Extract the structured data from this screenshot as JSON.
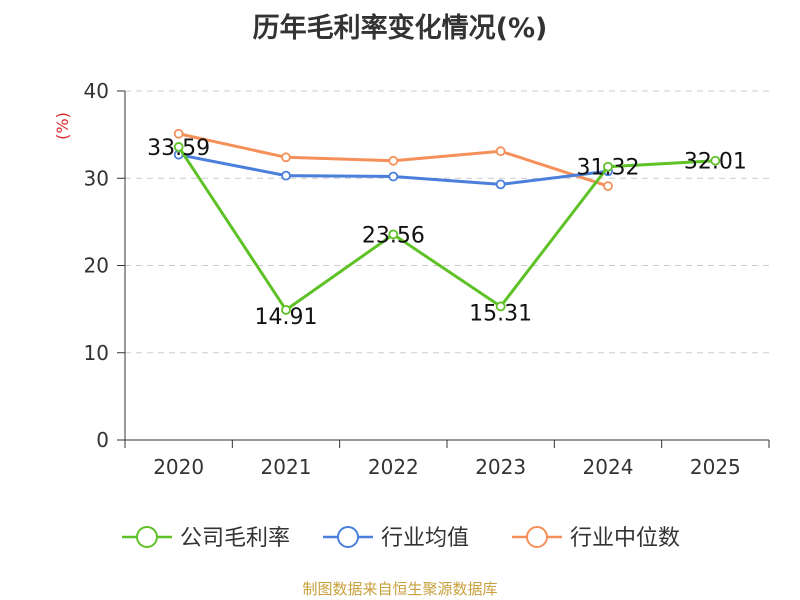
{
  "chart_data": {
    "type": "line",
    "title": "历年毛利率变化情况(%)",
    "ylabel": "(%)",
    "xlabel": "",
    "categories": [
      "2020",
      "2021",
      "2022",
      "2023",
      "2024",
      "2025"
    ],
    "ylim": [
      0,
      40
    ],
    "yticks": [
      0,
      10,
      20,
      30,
      40
    ],
    "grid": true,
    "legend_position": "bottom",
    "series": [
      {
        "name": "公司毛利率",
        "color": "#5ec227",
        "values": [
          33.59,
          14.91,
          23.56,
          15.31,
          31.32,
          32.01
        ],
        "labels": [
          "33.59",
          "14.91",
          "23.56",
          "15.31",
          "31.32",
          "32.01"
        ]
      },
      {
        "name": "行业均值",
        "color": "#4a7fdc",
        "values": [
          32.7,
          30.3,
          30.2,
          29.3,
          30.8,
          null
        ]
      },
      {
        "name": "行业中位数",
        "color": "#f5905a",
        "values": [
          35.1,
          32.4,
          32.0,
          33.1,
          29.1,
          null
        ]
      }
    ]
  },
  "footer": {
    "source": "制图数据来自恒生聚源数据库"
  },
  "colors": {
    "ylabel": "#d9262b",
    "axis": "#333333",
    "grid": "#cccccc"
  }
}
